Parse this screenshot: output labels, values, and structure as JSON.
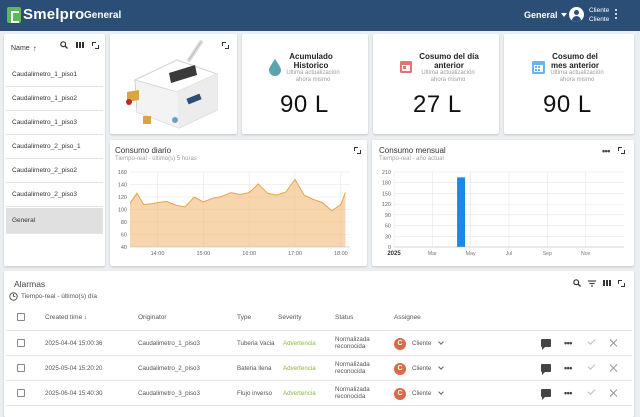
{
  "header": {
    "logo_text": "Smelpro",
    "title": "General",
    "dashboard_select": "General",
    "user_line1": "Cliente",
    "user_line2": "Cliente"
  },
  "entity_list": {
    "sort_column": "Name",
    "items": [
      "Caudalimetro_1_piso1",
      "Caudalimetro_1_piso2",
      "Caudalimetro_1_piso3",
      "Caudalimetro_2_piso_1",
      "Caudalimetro_2_piso2",
      "Caudalimetro_2_piso3",
      "General"
    ],
    "selected": "General"
  },
  "stats": [
    {
      "title": "Acumulado Historico",
      "sub1": "Ultima actualización",
      "sub2": "ahora mismo",
      "value": "90 L",
      "icon": "water-drop-icon",
      "color": "#5aa4b0"
    },
    {
      "title": "Cosumo del día anterior",
      "sub1": "Ultima actualización",
      "sub2": "ahora mismo",
      "value": "27 L",
      "icon": "calendar-icon",
      "color": "#e57373"
    },
    {
      "title": "Cosumo del mes anterior",
      "sub1": "Ultima actualización",
      "sub2": "ahora mismo",
      "value": "90 L",
      "icon": "calendar-month-icon",
      "color": "#64b5f6"
    }
  ],
  "chart_data": [
    {
      "type": "area",
      "title": "Consumo diario",
      "subtitle": "Tiempo-real - último(s) 5 horas",
      "x_ticks": [
        "14:00",
        "15:00",
        "16:00",
        "17:00",
        "18:00"
      ],
      "ylim": [
        40,
        160
      ],
      "y_ticks": [
        40,
        60,
        80,
        100,
        120,
        140,
        160
      ],
      "color": "#f0b46a",
      "x_hours": [
        13.4,
        13.55,
        13.7,
        13.85,
        14.0,
        14.2,
        14.4,
        14.6,
        14.8,
        15.0,
        15.2,
        15.4,
        15.6,
        15.8,
        16.0,
        16.2,
        16.4,
        16.6,
        16.8,
        17.0,
        17.2,
        17.4,
        17.6,
        17.8,
        18.0,
        18.1
      ],
      "values": [
        110,
        126,
        108,
        109,
        111,
        113,
        107,
        104,
        120,
        112,
        118,
        121,
        127,
        124,
        127,
        141,
        126,
        123,
        128,
        148,
        123,
        116,
        111,
        98,
        108,
        127
      ]
    },
    {
      "type": "bar",
      "title": "Consumo mensual",
      "subtitle": "Tiempo-real - año actual",
      "x_ticks": [
        "2025",
        "Mar",
        "May",
        "Jul",
        "Sep",
        "Nov"
      ],
      "ylim": [
        0,
        210
      ],
      "y_ticks": [
        0,
        30,
        60,
        90,
        120,
        150,
        180,
        210
      ],
      "color": "#1e88e5",
      "bars": [
        {
          "month": "Apr",
          "value": 195
        }
      ]
    }
  ],
  "alarms": {
    "title": "Alarmas",
    "subtitle": "Tiempo-real - último(s) día",
    "columns": [
      "Created time",
      "Originator",
      "Type",
      "Severity",
      "Status",
      "Assignee"
    ],
    "rows": [
      {
        "created": "2025-04-04 15:00:36",
        "originator": "Caudalimetro_1_piso3",
        "type": "Tuberia Vacia",
        "severity": "Advertencia",
        "status1": "Normalizada",
        "status2": "reconocida",
        "assignee_initial": "C",
        "assignee": "Cliente"
      },
      {
        "created": "2025-05-04 15:20:20",
        "originator": "Caudalimetro_2_piso3",
        "type": "Bateria llena",
        "severity": "Advertencia",
        "status1": "Normalizada",
        "status2": "reconocida",
        "assignee_initial": "C",
        "assignee": "Cliente"
      },
      {
        "created": "2025-06-04 15:40:30",
        "originator": "Caudalimetro_3_piso3",
        "type": "Flujo inverso",
        "severity": "Advertencia",
        "status1": "Normalizada",
        "status2": "reconocida",
        "assignee_initial": "C",
        "assignee": "Cliente"
      }
    ]
  }
}
